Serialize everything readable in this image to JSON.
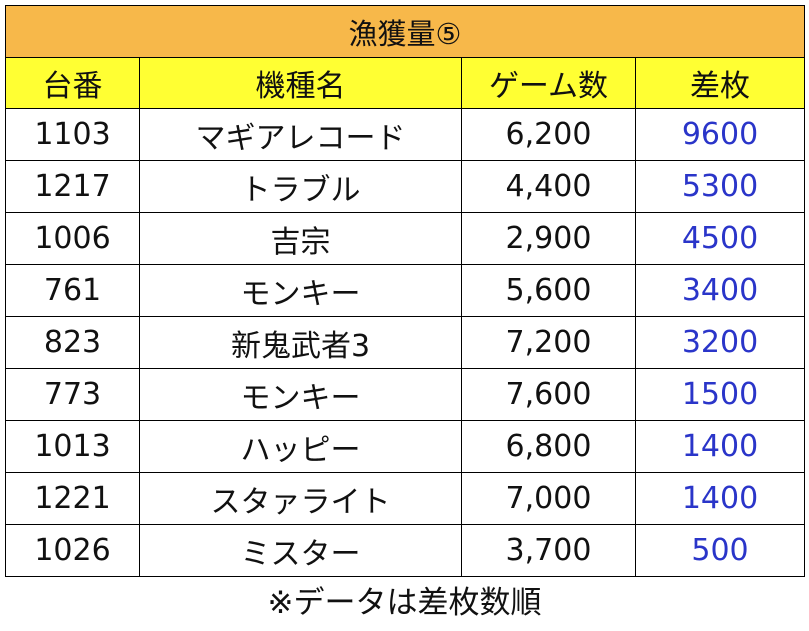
{
  "table": {
    "title": "漁獲量⑤",
    "headers": [
      "台番",
      "機種名",
      "ゲーム数",
      "差枚"
    ],
    "rows": [
      [
        "1103",
        "マギアレコード",
        "6,200",
        "9600"
      ],
      [
        "1217",
        "トラブル",
        "4,400",
        "5300"
      ],
      [
        "1006",
        "吉宗",
        "2,900",
        "4500"
      ],
      [
        "761",
        "モンキー",
        "5,600",
        "3400"
      ],
      [
        "823",
        "新鬼武者3",
        "7,200",
        "3200"
      ],
      [
        "773",
        "モンキー",
        "7,600",
        "1500"
      ],
      [
        "1013",
        "ハッピー",
        "6,800",
        "1400"
      ],
      [
        "1221",
        "スタァライト",
        "7,000",
        "1400"
      ],
      [
        "1026",
        "ミスター",
        "3,700",
        "500"
      ]
    ]
  },
  "footer": {
    "note": "※データは差枚数順"
  },
  "colors": {
    "title_bg": "#f7b84a",
    "header_bg": "#ffff33",
    "diff_text": "#2a35c9"
  }
}
